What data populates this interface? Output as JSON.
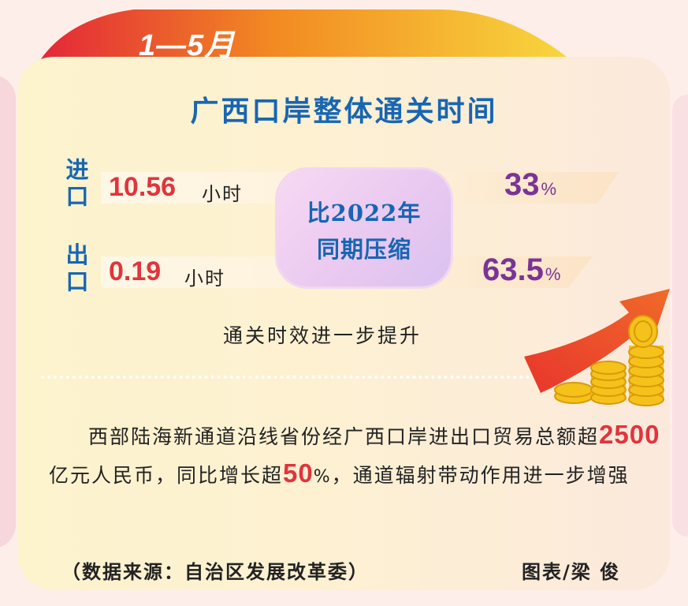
{
  "tab": {
    "title": "1—5月",
    "colors": [
      "#e8243a",
      "#f39b1e",
      "#f9e24a"
    ]
  },
  "headline": "广西口岸整体通关时间",
  "import": {
    "label": "进口",
    "value": "10.56",
    "unit": "小时",
    "reduction": "33",
    "percent_sign": "%"
  },
  "export": {
    "label": "出口",
    "value": "0.19",
    "unit": "小时",
    "reduction": "63.5",
    "percent_sign": "%"
  },
  "compare_box": {
    "line1": "比2022年",
    "line2": "同期压缩"
  },
  "subtitle": "通关时效进一步提升",
  "paragraph": {
    "part1": "西部陆海新通道沿线省份经广西口岸进出口贸易总额超",
    "amount": "2500",
    "part2": "亿元人民币，同比增长超",
    "growth": "50",
    "pct": "%",
    "part3": "，通道辐射带动作用进一步增强"
  },
  "source": "（数据来源：自治区发展改革委）",
  "credit": "图表/梁  俊",
  "decoration_icons": [
    "rising-arrow-icon",
    "gold-coins-icon"
  ],
  "colors": {
    "headline": "#1766b3",
    "value": "#e1343c",
    "percent": "#7a3496"
  }
}
